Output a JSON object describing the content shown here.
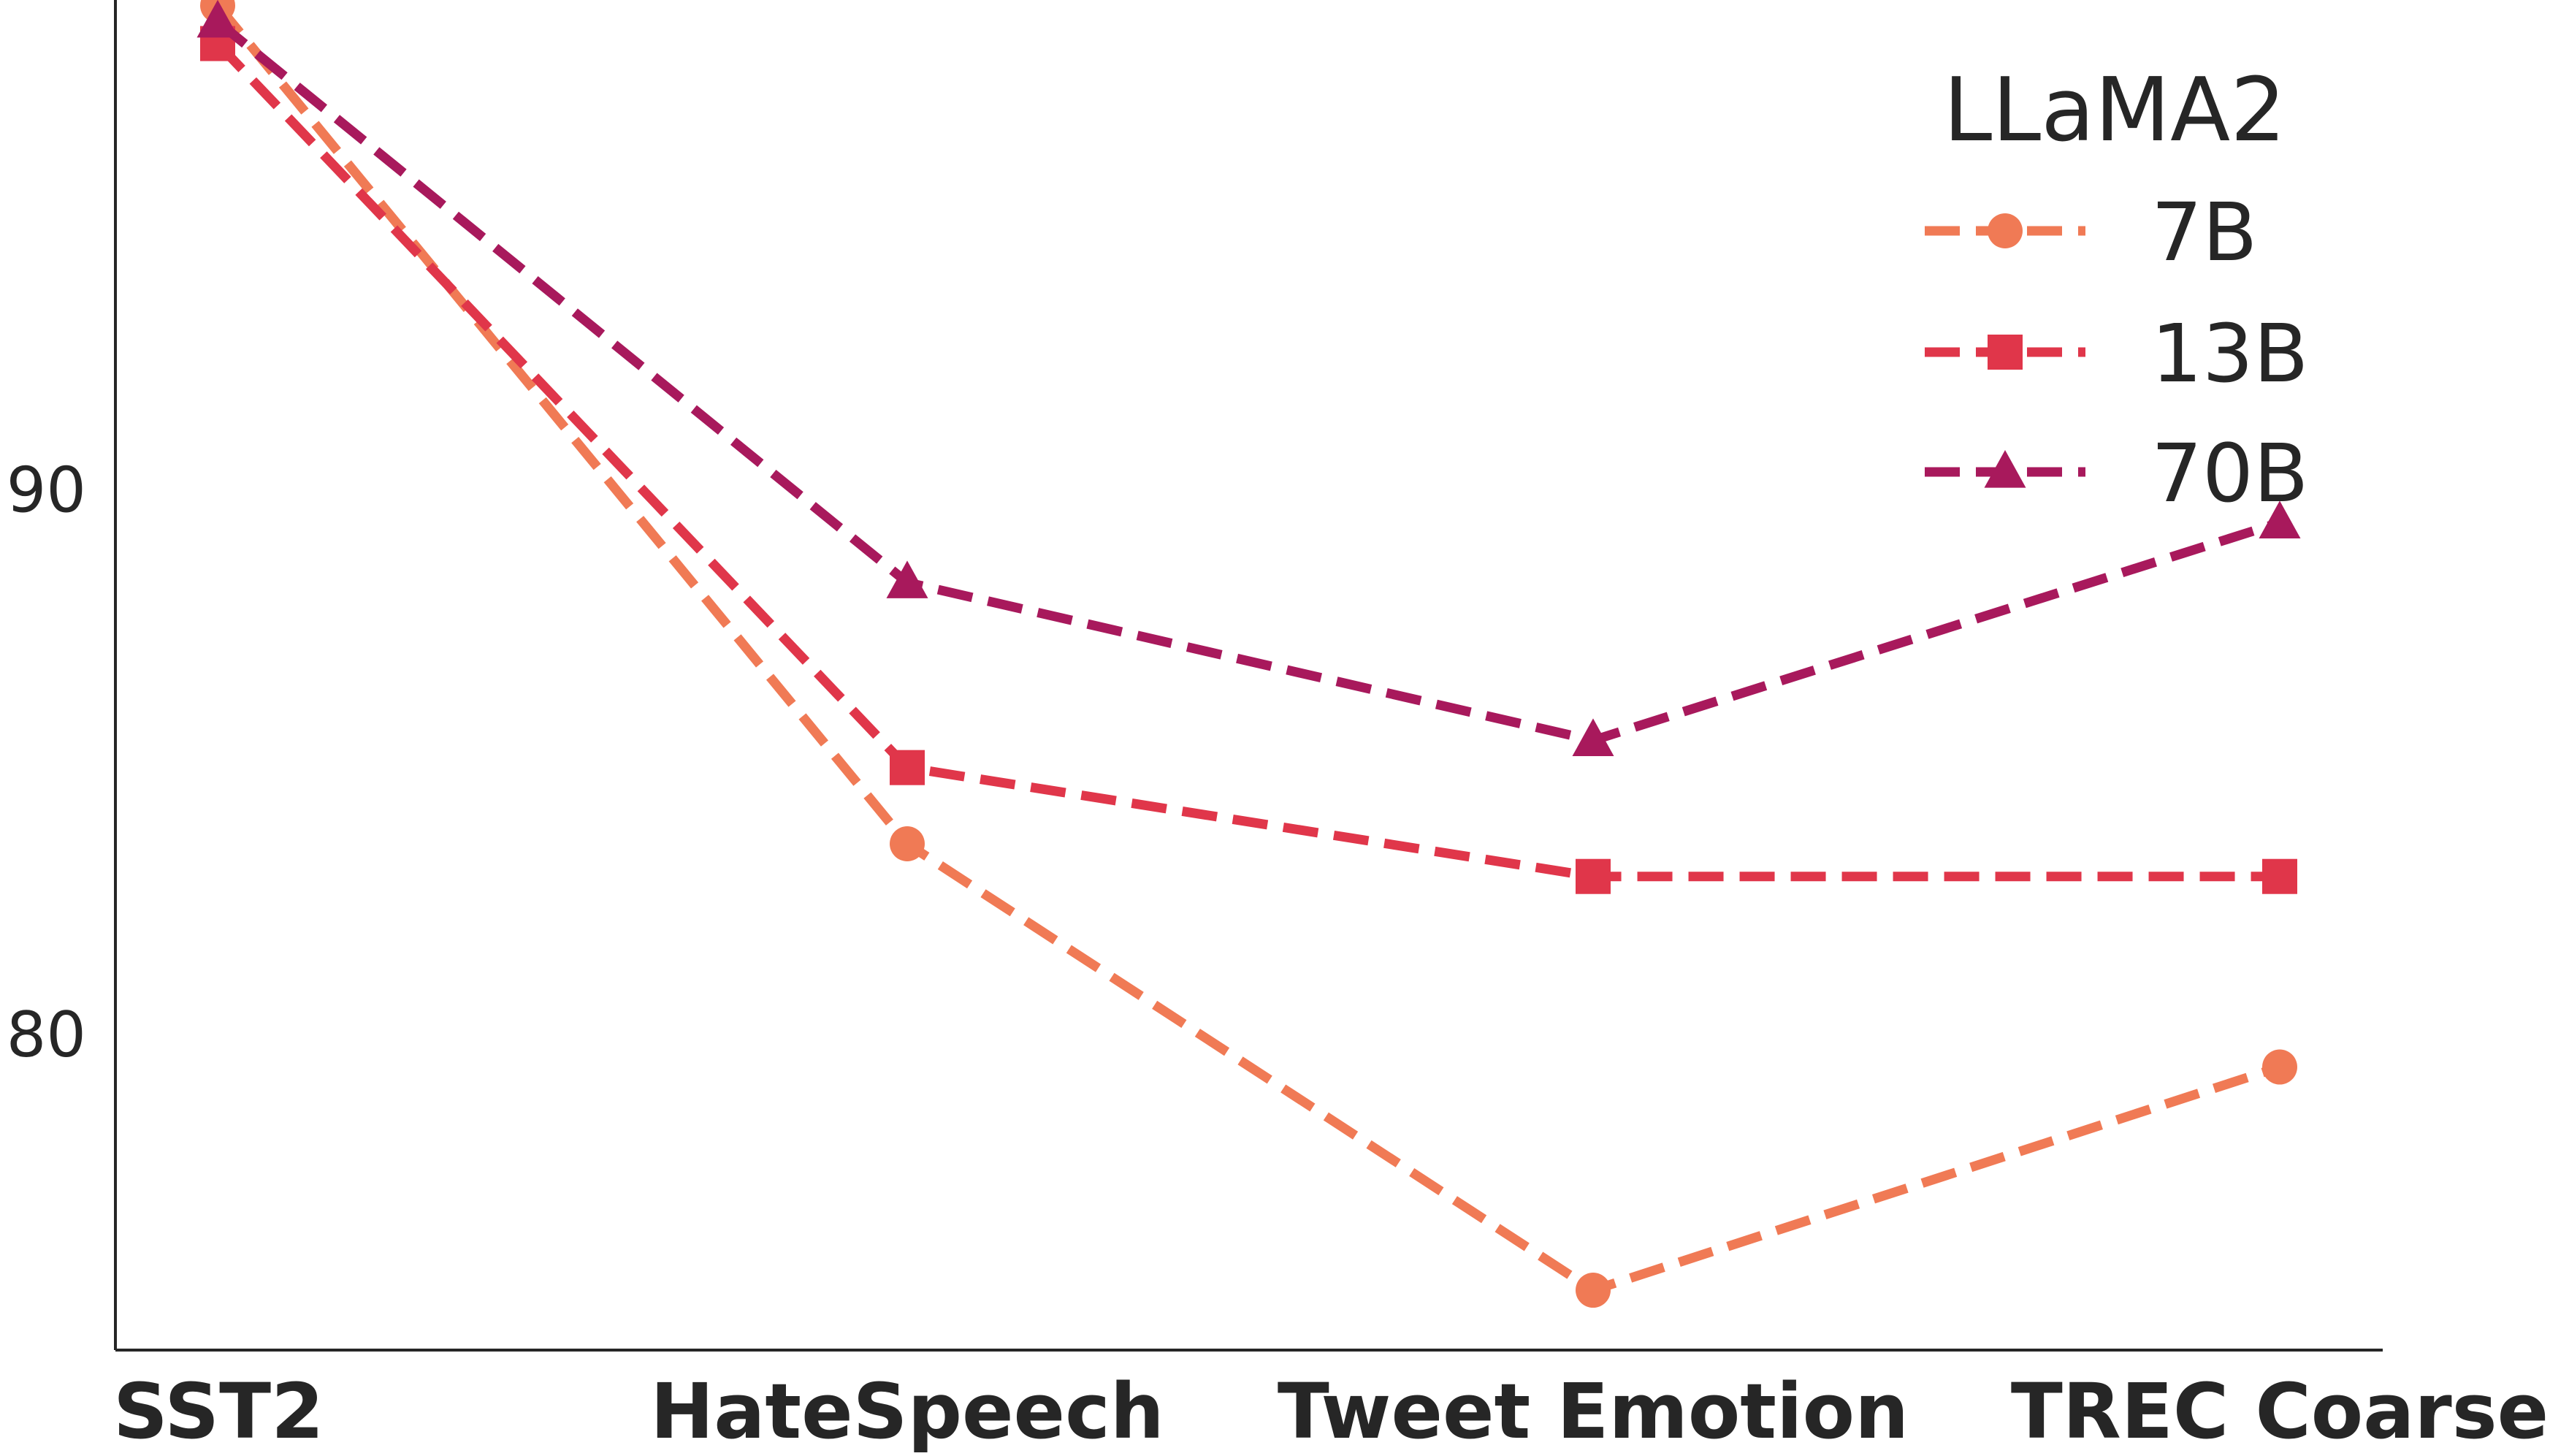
{
  "chart_data": {
    "type": "line",
    "categories": [
      "SST2",
      "HateSpeech",
      "Tweet Emotion",
      "TREC Coarse"
    ],
    "yticks": [
      80,
      90
    ],
    "ylim": [
      74.2,
      99.0
    ],
    "grid": false,
    "legend": {
      "title": "LLaMA2",
      "placement": "top-right"
    },
    "series": [
      {
        "name": "7B",
        "color": "#f07a55",
        "marker": "circle",
        "linestyle": "dashed",
        "values": [
          98.9,
          83.5,
          75.3,
          79.4
        ]
      },
      {
        "name": "13B",
        "color": "#e0364a",
        "marker": "square",
        "linestyle": "dashed",
        "values": [
          98.2,
          84.9,
          82.9,
          82.9
        ]
      },
      {
        "name": "70B",
        "color": "#a8195c",
        "marker": "triangle",
        "linestyle": "dashed",
        "values": [
          98.6,
          88.3,
          85.4,
          89.4
        ]
      }
    ]
  }
}
